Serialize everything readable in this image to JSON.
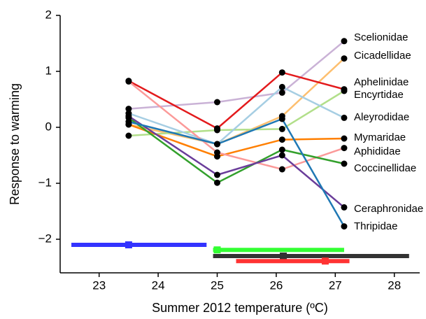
{
  "chart_data": {
    "type": "line",
    "x_label": "Summer 2012 temperature (ºC)",
    "y_label": "Response to warming",
    "x": [
      23.5,
      25,
      26.1,
      27.15
    ],
    "xlim": [
      22.34,
      28.43
    ],
    "ylim": [
      -2.6,
      2
    ],
    "xticks": [
      23,
      24,
      25,
      26,
      27,
      28
    ],
    "yticks": [
      {
        "value": -2,
        "label": "−2"
      },
      {
        "value": -1,
        "label": "−1"
      },
      0,
      1,
      2
    ],
    "series": [
      {
        "name": "Scelionidae",
        "color": "#cab2d6",
        "values": [
          0.33,
          0.45,
          0.62,
          1.54
        ]
      },
      {
        "name": "Cicadellidae",
        "color": "#fdbf6f",
        "values": [
          0.05,
          -0.3,
          0.2,
          1.23
        ]
      },
      {
        "name": "Aphelinidae",
        "color": "#e31a1c",
        "values": [
          0.83,
          -0.02,
          0.98,
          0.68
        ]
      },
      {
        "name": "Encyrtidae",
        "color": "#b2df8a",
        "values": [
          -0.15,
          -0.05,
          -0.03,
          0.65
        ]
      },
      {
        "name": "Aleyrodidae",
        "color": "#a6cee3",
        "values": [
          0.25,
          -0.3,
          0.72,
          0.17
        ]
      },
      {
        "name": "Mymaridae",
        "color": "#ff7f00",
        "values": [
          0.05,
          -0.52,
          -0.22,
          -0.2
        ]
      },
      {
        "name": "Aphididae",
        "color": "#fb9a99",
        "values": [
          0.82,
          -0.45,
          -0.75,
          -0.37
        ]
      },
      {
        "name": "Coccinellidae",
        "color": "#33a02c",
        "values": [
          0.17,
          -0.99,
          -0.4,
          -0.65
        ]
      },
      {
        "name": "Ceraphronidae",
        "color": "#6a3d9a",
        "values": [
          0.2,
          -0.85,
          -0.5,
          -1.43
        ]
      },
      {
        "name": "Thripidae",
        "color": "#1f78b4",
        "values": [
          0.1,
          -0.3,
          0.15,
          -1.77
        ]
      }
    ],
    "ranges": [
      {
        "color": "#3333ff",
        "y": -2.1,
        "xmin": 22.53,
        "xmax": 24.82,
        "center": 23.5
      },
      {
        "color": "#33ff33",
        "y": -2.19,
        "xmin": 24.93,
        "xmax": 27.15,
        "center": 25.0
      },
      {
        "color": "#333333",
        "y": -2.3,
        "xmin": 24.93,
        "xmax": 28.25,
        "center": 26.12
      },
      {
        "color": "#ff3333",
        "y": -2.39,
        "xmin": 25.32,
        "xmax": 27.24,
        "center": 26.83
      }
    ]
  }
}
